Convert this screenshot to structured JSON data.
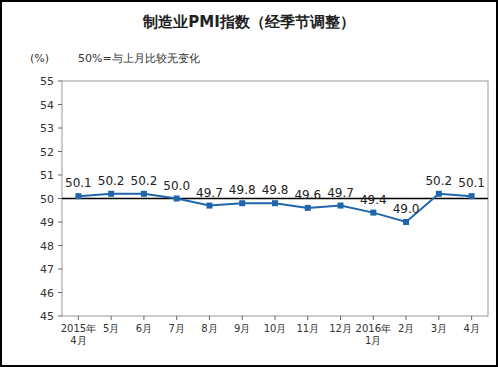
{
  "chart_data": {
    "type": "line",
    "title": "制造业PMI指数（经季节调整）",
    "y_label": "(%)",
    "annotation": "50%=与上月比较无变化",
    "categories": [
      "2015年4月",
      "5月",
      "6月",
      "7月",
      "8月",
      "9月",
      "10月",
      "11月",
      "12月",
      "2016年1月",
      "2月",
      "3月",
      "4月"
    ],
    "values": [
      50.1,
      50.2,
      50.2,
      50.0,
      49.7,
      49.8,
      49.8,
      49.6,
      49.7,
      49.4,
      49.0,
      50.2,
      50.1
    ],
    "value_labels": [
      "50.1",
      "50.2",
      "50.2",
      "50.0",
      "49.7",
      "49.8",
      "49.8",
      "49.6",
      "49.7",
      "49.4",
      "49.0",
      "50.2",
      "50.1"
    ],
    "reference_value": 50,
    "color": "#2166ac",
    "marker": "square",
    "line_style": "solid",
    "data_labels": true,
    "grid": false,
    "ylim": [
      45,
      55
    ],
    "yticks": [
      45,
      46,
      47,
      48,
      49,
      50,
      51,
      52,
      53,
      54,
      55
    ]
  }
}
